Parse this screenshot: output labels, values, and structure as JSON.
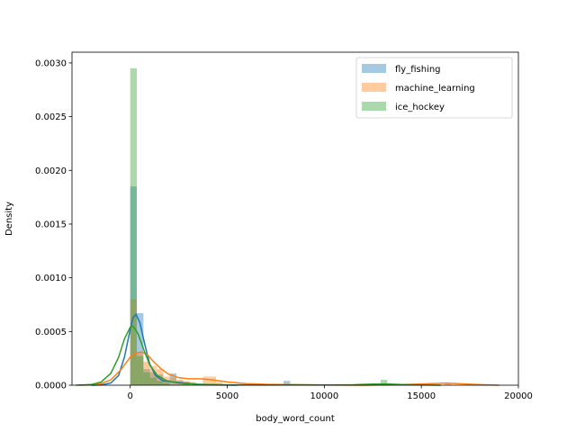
{
  "chart_data": {
    "type": "histogram",
    "title": "",
    "xlabel": "body_word_count",
    "ylabel": "Density",
    "xlim": [
      -3000,
      20000
    ],
    "ylim": [
      0,
      0.0031
    ],
    "xticks": [
      0,
      5000,
      10000,
      15000,
      20000
    ],
    "xtick_labels": [
      "0",
      "5000",
      "10000",
      "15000",
      "20000"
    ],
    "yticks": [
      0,
      0.0005,
      0.001,
      0.0015,
      0.002,
      0.0025,
      0.003
    ],
    "ytick_labels": [
      "0.0000",
      "0.0005",
      "0.0010",
      "0.0015",
      "0.0020",
      "0.0025",
      "0.0030"
    ],
    "grid": false,
    "legend_position": "top-right",
    "bin_width": 340,
    "series": [
      {
        "name": "fly_fishing",
        "color": "#1f77b4",
        "bins": [
          {
            "x0": 0,
            "x1": 340,
            "density": 0.00185
          },
          {
            "x0": 340,
            "x1": 680,
            "density": 0.00067
          },
          {
            "x0": 680,
            "x1": 1020,
            "density": 0.00015
          },
          {
            "x0": 1020,
            "x1": 1360,
            "density": 0.00012
          },
          {
            "x0": 1360,
            "x1": 1700,
            "density": 0.0001
          },
          {
            "x0": 1700,
            "x1": 2040,
            "density": 5e-05
          },
          {
            "x0": 2040,
            "x1": 2380,
            "density": 0.00011
          },
          {
            "x0": 2380,
            "x1": 2720,
            "density": 4e-05
          },
          {
            "x0": 2720,
            "x1": 3060,
            "density": 3e-05
          },
          {
            "x0": 7900,
            "x1": 8240,
            "density": 4e-05
          }
        ],
        "kde": [
          [
            -2000,
            0.0
          ],
          [
            -1500,
            2e-06
          ],
          [
            -1000,
            2e-05
          ],
          [
            -600,
            9e-05
          ],
          [
            -300,
            0.00026
          ],
          [
            0,
            0.00052
          ],
          [
            150,
            0.00063
          ],
          [
            300,
            0.00066
          ],
          [
            500,
            0.00058
          ],
          [
            750,
            0.00038
          ],
          [
            1000,
            0.0002
          ],
          [
            1300,
            9e-05
          ],
          [
            1700,
            4e-05
          ],
          [
            2200,
            3e-05
          ],
          [
            2800,
            2e-05
          ],
          [
            3500,
            8e-06
          ],
          [
            4500,
            2e-06
          ],
          [
            5500,
            0.0
          ]
        ]
      },
      {
        "name": "machine_learning",
        "color": "#ff7f0e",
        "bins": [
          {
            "x0": 0,
            "x1": 340,
            "density": 0.0008
          },
          {
            "x0": 340,
            "x1": 680,
            "density": 0.0003
          },
          {
            "x0": 680,
            "x1": 1020,
            "density": 0.00022
          },
          {
            "x0": 1020,
            "x1": 1360,
            "density": 0.00018
          },
          {
            "x0": 1360,
            "x1": 1700,
            "density": 0.00015
          },
          {
            "x0": 1700,
            "x1": 2040,
            "density": 8e-05
          },
          {
            "x0": 2040,
            "x1": 2380,
            "density": 7e-05
          },
          {
            "x0": 2380,
            "x1": 2720,
            "density": 5e-05
          },
          {
            "x0": 2720,
            "x1": 3060,
            "density": 4e-05
          },
          {
            "x0": 3060,
            "x1": 3400,
            "density": 3e-05
          },
          {
            "x0": 3740,
            "x1": 4080,
            "density": 8e-05
          },
          {
            "x0": 4080,
            "x1": 4420,
            "density": 8e-05
          },
          {
            "x0": 4420,
            "x1": 4760,
            "density": 3e-05
          },
          {
            "x0": 5440,
            "x1": 5780,
            "density": 1e-05
          },
          {
            "x0": 16200,
            "x1": 16540,
            "density": 2e-05
          }
        ],
        "kde": [
          [
            -2600,
            0.0
          ],
          [
            -2000,
            4e-06
          ],
          [
            -1500,
            1.5e-05
          ],
          [
            -1000,
            5e-05
          ],
          [
            -500,
            0.00014
          ],
          [
            0,
            0.00026
          ],
          [
            300,
            0.0003
          ],
          [
            600,
            0.00031
          ],
          [
            900,
            0.00028
          ],
          [
            1200,
            0.00022
          ],
          [
            1600,
            0.00015
          ],
          [
            2000,
            0.0001
          ],
          [
            2500,
            7e-05
          ],
          [
            3000,
            6e-05
          ],
          [
            3600,
            6e-05
          ],
          [
            4200,
            5e-05
          ],
          [
            5000,
            3e-05
          ],
          [
            6000,
            1.5e-05
          ],
          [
            7000,
            8e-06
          ],
          [
            8500,
            4e-06
          ],
          [
            10000,
            2e-06
          ],
          [
            12000,
            0.0
          ],
          [
            14000,
            5e-06
          ],
          [
            15500,
            1.5e-05
          ],
          [
            16300,
            2e-05
          ],
          [
            17200,
            1.2e-05
          ],
          [
            18200,
            4e-06
          ],
          [
            19000,
            0.0
          ]
        ]
      },
      {
        "name": "ice_hockey",
        "color": "#2ca02c",
        "bins": [
          {
            "x0": 0,
            "x1": 340,
            "density": 0.00295
          },
          {
            "x0": 340,
            "x1": 680,
            "density": 0.00027
          },
          {
            "x0": 680,
            "x1": 1020,
            "density": 0.00012
          },
          {
            "x0": 1020,
            "x1": 1360,
            "density": 7e-05
          },
          {
            "x0": 1360,
            "x1": 1700,
            "density": 4e-05
          },
          {
            "x0": 1700,
            "x1": 2040,
            "density": 2e-05
          },
          {
            "x0": 2720,
            "x1": 3060,
            "density": 2e-05
          },
          {
            "x0": 8240,
            "x1": 8580,
            "density": 1e-05
          },
          {
            "x0": 12900,
            "x1": 13240,
            "density": 5e-05
          }
        ],
        "kde": [
          [
            -2800,
            0.0
          ],
          [
            -2000,
            6e-06
          ],
          [
            -1500,
            3e-05
          ],
          [
            -1000,
            0.00011
          ],
          [
            -600,
            0.00026
          ],
          [
            -300,
            0.00043
          ],
          [
            0,
            0.00054
          ],
          [
            150,
            0.00055
          ],
          [
            400,
            0.00048
          ],
          [
            700,
            0.00033
          ],
          [
            1000,
            0.00019
          ],
          [
            1400,
            9e-05
          ],
          [
            1900,
            4e-05
          ],
          [
            2500,
            2e-05
          ],
          [
            3500,
            8e-06
          ],
          [
            5000,
            3e-06
          ],
          [
            7000,
            2e-06
          ],
          [
            8500,
            4e-06
          ],
          [
            10000,
            2e-06
          ],
          [
            11500,
            4e-06
          ],
          [
            12500,
            1e-05
          ],
          [
            13200,
            1.2e-05
          ],
          [
            14000,
            6e-06
          ],
          [
            15000,
            2e-06
          ],
          [
            16000,
            0.0
          ]
        ]
      }
    ]
  }
}
